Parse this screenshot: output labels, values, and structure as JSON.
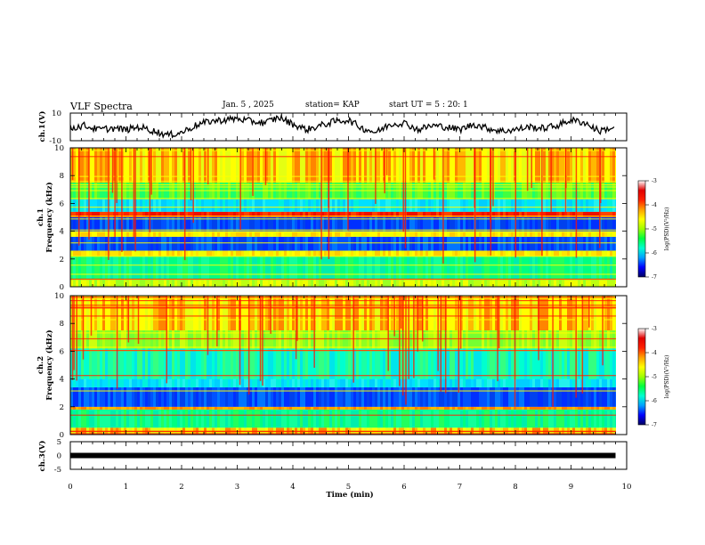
{
  "header": {
    "title": "VLF Spectra",
    "date": "Jan. 5 , 2025",
    "station": "station= KAP",
    "start": "start UT = 5 : 20: 1"
  },
  "chart_data": [
    {
      "type": "line",
      "id": "ch1-waveform",
      "ylabel": "ch.1(V)",
      "ylim": [
        -10,
        10
      ],
      "yticks": [
        {
          "v": 10,
          "label": "10"
        },
        {
          "v": -10,
          "label": "-10"
        }
      ],
      "x": [
        0,
        0.25,
        0.5,
        0.75,
        1,
        1.25,
        1.5,
        1.75,
        2,
        2.25,
        2.5,
        2.75,
        3,
        3.25,
        3.5,
        3.75,
        4,
        4.25,
        4.5,
        4.75,
        5,
        5.25,
        5.5,
        5.75,
        6,
        6.25,
        6.5,
        6.75,
        7,
        7.25,
        7.5,
        7.75,
        8,
        8.25,
        8.5,
        8.75,
        9,
        9.25,
        9.5,
        9.8
      ],
      "y": [
        -1,
        1,
        -2,
        -1,
        -2,
        0,
        -3,
        -6,
        -4,
        1,
        4,
        5,
        6,
        4,
        3,
        7,
        2,
        -2,
        1,
        4,
        5,
        -1,
        -4,
        2,
        3,
        -2,
        1,
        0,
        -2,
        2,
        -1,
        -3,
        -2,
        0,
        -1,
        1,
        5,
        3,
        -3,
        0
      ]
    },
    {
      "type": "heatmap",
      "id": "ch1-spectrogram",
      "ylabel": "Frequency (kHz)",
      "channel_label": "ch.1",
      "ylim": [
        0,
        10
      ],
      "yticks": [
        "0",
        "2",
        "4",
        "6",
        "8",
        "10"
      ],
      "band_colors": [
        {
          "from": 0,
          "to": 0.5,
          "level": "yellow-green"
        },
        {
          "from": 0.5,
          "to": 2.2,
          "level": "green-cyan"
        },
        {
          "from": 2.2,
          "to": 2.6,
          "level": "yellow"
        },
        {
          "from": 2.6,
          "to": 3.6,
          "level": "blue"
        },
        {
          "from": 3.6,
          "to": 4.0,
          "level": "yellow"
        },
        {
          "from": 4.0,
          "to": 5.0,
          "level": "blue"
        },
        {
          "from": 5.0,
          "to": 5.4,
          "level": "red"
        },
        {
          "from": 5.4,
          "to": 6.3,
          "level": "cyan"
        },
        {
          "from": 6.3,
          "to": 7.5,
          "level": "green"
        },
        {
          "from": 7.5,
          "to": 10,
          "level": "yellow-red"
        }
      ]
    },
    {
      "type": "heatmap",
      "id": "ch2-spectrogram",
      "ylabel": "Frequency (kHz)",
      "channel_label": "ch.2",
      "ylim": [
        0,
        10
      ],
      "yticks": [
        "0",
        "2",
        "4",
        "6",
        "8",
        "10"
      ],
      "band_colors": [
        {
          "from": 0,
          "to": 0.5,
          "level": "yellow-red"
        },
        {
          "from": 0.5,
          "to": 1.8,
          "level": "green-cyan"
        },
        {
          "from": 1.8,
          "to": 2.0,
          "level": "orange"
        },
        {
          "from": 2.0,
          "to": 3.4,
          "level": "blue"
        },
        {
          "from": 3.4,
          "to": 4.0,
          "level": "cyan"
        },
        {
          "from": 4.0,
          "to": 6.2,
          "level": "cyan-green"
        },
        {
          "from": 6.2,
          "to": 7.5,
          "level": "green-yellow"
        },
        {
          "from": 7.5,
          "to": 10,
          "level": "yellow-red"
        }
      ]
    },
    {
      "type": "line",
      "id": "ch3-waveform",
      "ylabel": "ch.3(V)",
      "ylim": [
        -5,
        5
      ],
      "yticks": [
        {
          "v": 5,
          "label": "5"
        },
        {
          "v": 0,
          "label": "0"
        },
        {
          "v": -5,
          "label": "-5"
        }
      ],
      "x": [
        0,
        9.8
      ],
      "y": [
        0,
        0
      ]
    }
  ],
  "time_axis": {
    "xlabel": "Time (min)",
    "xlim": [
      0,
      10
    ],
    "ticks": [
      "0",
      "1",
      "2",
      "3",
      "4",
      "5",
      "6",
      "7",
      "8",
      "9",
      "10"
    ]
  },
  "colorbar": {
    "label": "log(PSD)(V²/Hz)",
    "ticks": [
      "-3",
      "-4",
      "-5",
      "-6",
      "-7"
    ],
    "range": [
      -7,
      -3
    ],
    "colors": [
      "#000060",
      "#0000ff",
      "#00a0ff",
      "#00ffd0",
      "#00ff40",
      "#a0ff00",
      "#ffff00",
      "#ffa000",
      "#ff2000",
      "#e00000",
      "#ffffff"
    ]
  }
}
